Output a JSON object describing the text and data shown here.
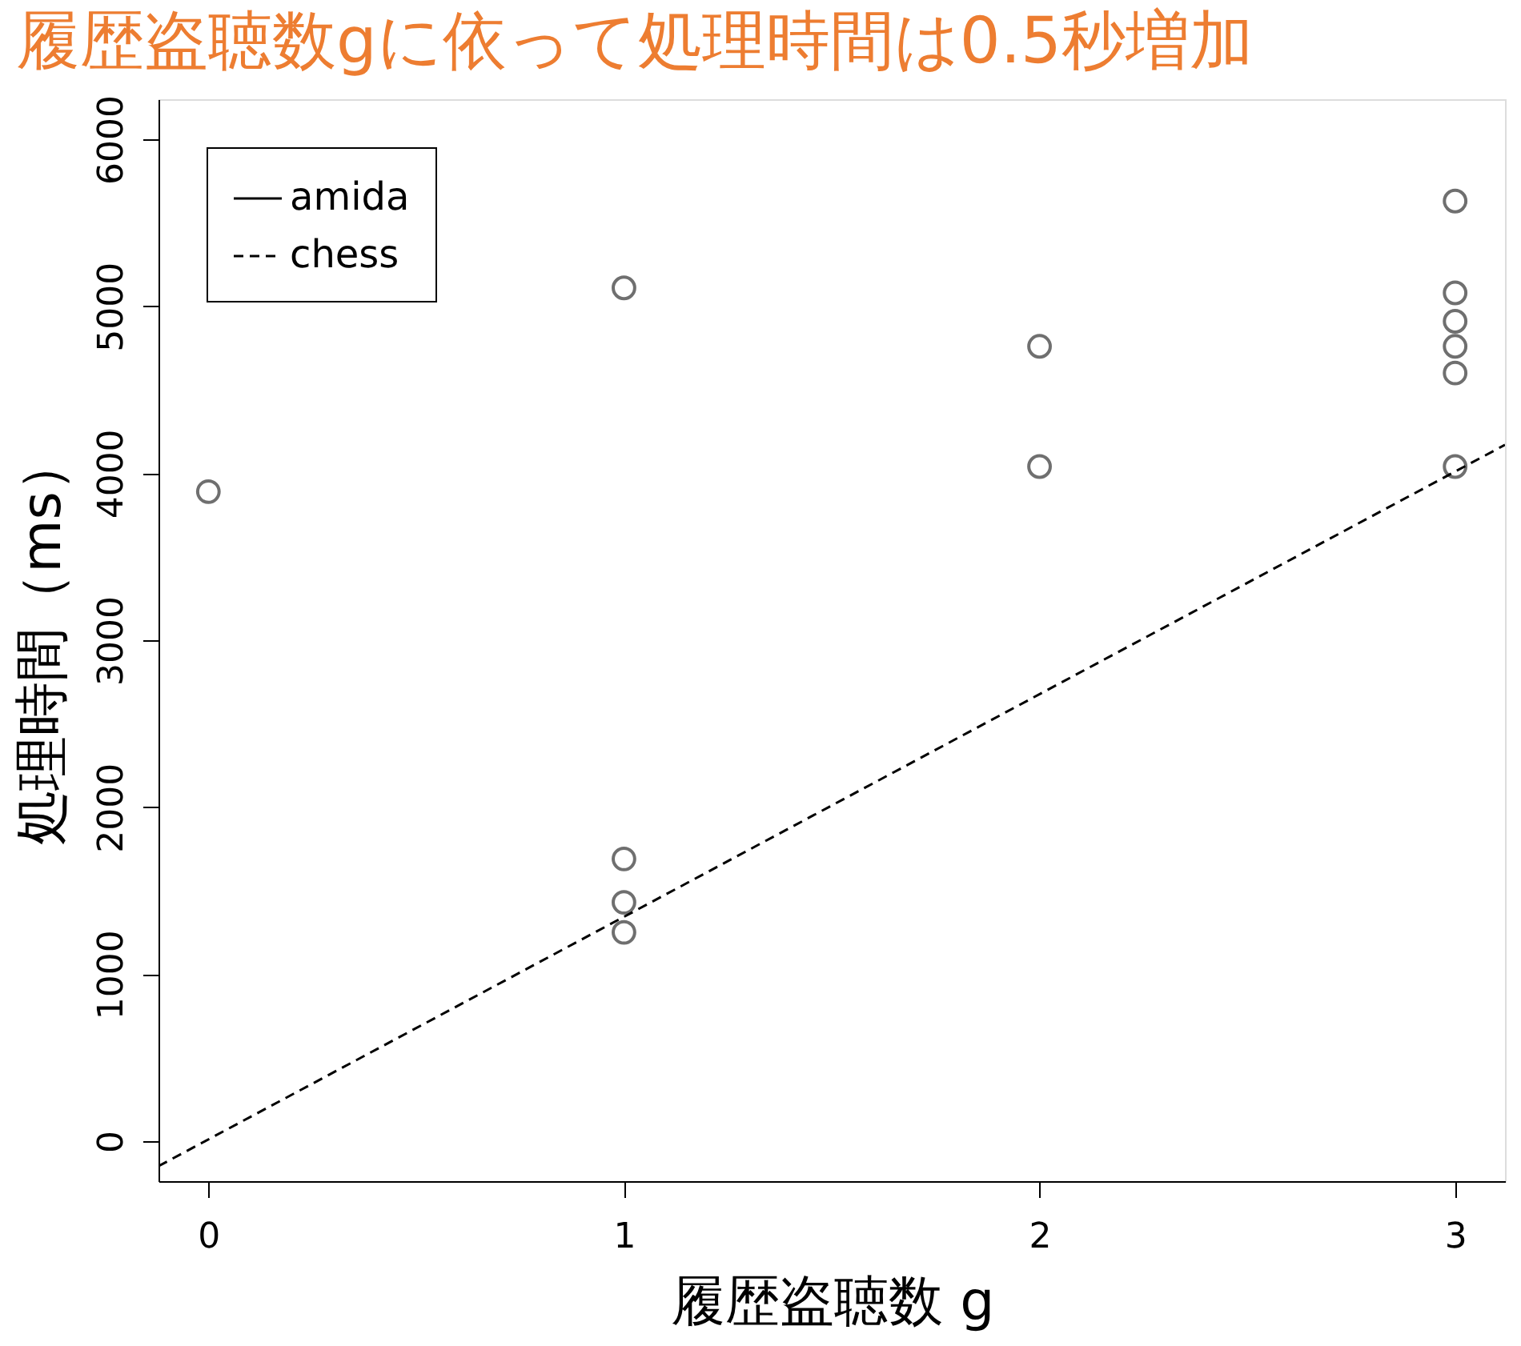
{
  "chart_data": {
    "type": "scatter",
    "xlabel": "履歴盗聴数 g",
    "ylabel": "処理時間（ms）",
    "annotations": [
      "履歴盗聴数gに依って処理時間は0.5秒増加"
    ],
    "xlim": [
      -0.12,
      3.12
    ],
    "xticks": [
      0,
      1,
      2,
      3
    ],
    "ylim": [
      -240,
      6240
    ],
    "yticks": [
      0,
      1000,
      2000,
      3000,
      4000,
      5000,
      6000
    ],
    "grid": false,
    "legend": "top left",
    "series": [
      {
        "name": "amida",
        "type": "line",
        "line_style": "solid",
        "color": "#000000"
      },
      {
        "name": "chess",
        "type": "line",
        "line_style": "dashed",
        "color": "#000000",
        "x": [
          -0.12,
          3.12
        ],
        "values": [
          -150,
          4170
        ]
      },
      {
        "color": "#333333",
        "marker": "circle",
        "x": [
          0,
          1,
          1,
          1,
          1,
          2,
          2,
          3,
          3,
          3,
          3,
          3,
          3
        ],
        "values": [
          3890,
          5110,
          1690,
          1430,
          1250,
          4760,
          4040,
          5630,
          5080,
          4910,
          4760,
          4600,
          4040
        ]
      }
    ]
  }
}
